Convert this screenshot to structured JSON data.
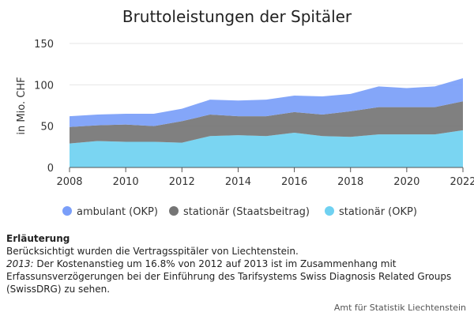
{
  "chart_data": {
    "type": "area",
    "stacked": true,
    "title": "Bruttoleistungen der Spitäler",
    "ylabel": "in Mio. CHF",
    "xlabel": "",
    "ylim": [
      0,
      150
    ],
    "yticks": [
      0,
      50,
      100,
      150
    ],
    "xlim": [
      2008,
      2022
    ],
    "xticks": [
      2008,
      2010,
      2012,
      2014,
      2016,
      2018,
      2020,
      2022
    ],
    "x": [
      2008,
      2009,
      2010,
      2011,
      2012,
      2013,
      2014,
      2015,
      2016,
      2017,
      2018,
      2019,
      2020,
      2021,
      2022
    ],
    "grid": true,
    "legend_position": "bottom",
    "series": [
      {
        "name": "stationär (OKP)",
        "color": "#6fd1f1",
        "values": [
          29,
          32,
          31,
          31,
          30,
          38,
          39,
          38,
          42,
          38,
          37,
          40,
          40,
          40,
          45
        ]
      },
      {
        "name": "stationär (Staatsbeitrag)",
        "color": "#757575",
        "values": [
          20,
          19,
          21,
          19,
          26,
          26,
          23,
          24,
          25,
          26,
          31,
          33,
          33,
          33,
          35
        ]
      },
      {
        "name": "ambulant (OKP)",
        "color": "#7a9ef9",
        "values": [
          13,
          13,
          13,
          15,
          15,
          18,
          19,
          20,
          20,
          22,
          21,
          25,
          23,
          25,
          28
        ]
      }
    ],
    "legend_order": [
      "ambulant (OKP)",
      "stationär (Staatsbeitrag)",
      "stationär (OKP)"
    ]
  },
  "notes": {
    "heading": "Erläuterung",
    "line1": "Berücksichtigt wurden die Vertragsspitäler von Liechtenstein.",
    "year": "2013:",
    "line2": " Der Kostenanstieg um 16.8% von 2012 auf 2013 ist im Zusammenhang mit Erfassunsverzögerungen bei der Einführung des Tarifsystems Swiss Diagnosis Related Groups (SwissDRG) zu sehen."
  },
  "credits": "Amt für Statistik Liechtenstein"
}
